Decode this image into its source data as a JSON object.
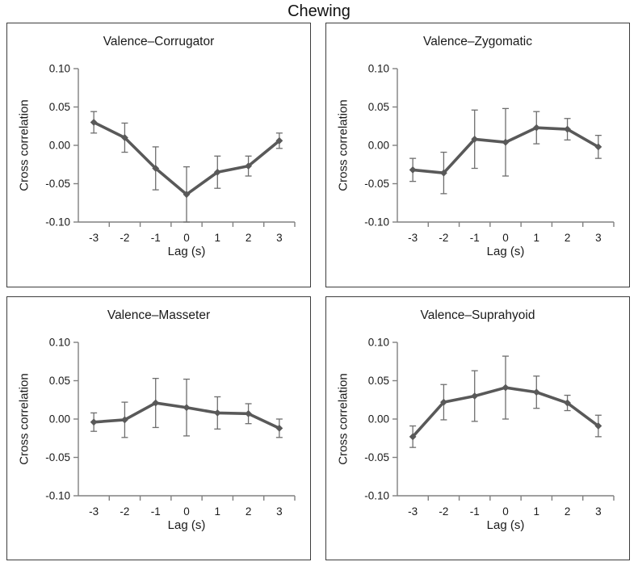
{
  "figure": {
    "title": "Chewing"
  },
  "style": {
    "line_color": "#595959",
    "error_color": "#6e6e6e",
    "axis_color": "#808080",
    "text_color": "#1a1a1a",
    "panel_border_color": "#3d3d3d",
    "background": "#ffffff"
  },
  "chart_data": [
    {
      "type": "line",
      "title": "Valence–Corrugator",
      "xlabel": "Lag (s)",
      "ylabel": "Cross correlation",
      "x": [
        -3,
        -2,
        -1,
        0,
        1,
        2,
        3
      ],
      "values": [
        0.03,
        0.01,
        -0.03,
        -0.064,
        -0.035,
        -0.027,
        0.006
      ],
      "errors": [
        0.014,
        0.019,
        0.028,
        0.036,
        0.021,
        0.013,
        0.01
      ],
      "ylim": [
        -0.1,
        0.1
      ],
      "ytick_labels": [
        "0.10",
        "0.05",
        "0.00",
        "-0.05",
        "-0.10"
      ],
      "marker": "diamond",
      "line_color": "#595959",
      "grid": false,
      "legend": null
    },
    {
      "type": "line",
      "title": "Valence–Zygomatic",
      "xlabel": "Lag (s)",
      "ylabel": "Cross correlation",
      "x": [
        -3,
        -2,
        -1,
        0,
        1,
        2,
        3
      ],
      "values": [
        -0.032,
        -0.036,
        0.008,
        0.004,
        0.023,
        0.021,
        -0.002
      ],
      "errors": [
        0.015,
        0.027,
        0.038,
        0.044,
        0.021,
        0.014,
        0.015
      ],
      "ylim": [
        -0.1,
        0.1
      ],
      "ytick_labels": [
        "0.10",
        "0.05",
        "0.00",
        "-0.05",
        "-0.10"
      ],
      "marker": "diamond",
      "line_color": "#595959",
      "grid": false,
      "legend": null
    },
    {
      "type": "line",
      "title": "Valence–Masseter",
      "xlabel": "Lag (s)",
      "ylabel": "Cross correlation",
      "x": [
        -3,
        -2,
        -1,
        0,
        1,
        2,
        3
      ],
      "values": [
        -0.004,
        -0.001,
        0.021,
        0.015,
        0.008,
        0.007,
        -0.012
      ],
      "errors": [
        0.012,
        0.023,
        0.032,
        0.037,
        0.021,
        0.013,
        0.012
      ],
      "ylim": [
        -0.1,
        0.1
      ],
      "ytick_labels": [
        "0.10",
        "0.05",
        "0.00",
        "-0.05",
        "-0.10"
      ],
      "marker": "diamond",
      "line_color": "#595959",
      "grid": false,
      "legend": null
    },
    {
      "type": "line",
      "title": "Valence–Suprahyoid",
      "xlabel": "Lag (s)",
      "ylabel": "Cross correlation",
      "x": [
        -3,
        -2,
        -1,
        0,
        1,
        2,
        3
      ],
      "values": [
        -0.023,
        0.022,
        0.03,
        0.041,
        0.035,
        0.021,
        -0.009
      ],
      "errors": [
        0.014,
        0.023,
        0.033,
        0.041,
        0.021,
        0.01,
        0.014
      ],
      "ylim": [
        -0.1,
        0.1
      ],
      "ytick_labels": [
        "0.10",
        "0.05",
        "0.00",
        "-0.05",
        "-0.10"
      ],
      "marker": "diamond",
      "line_color": "#595959",
      "grid": false,
      "legend": null
    }
  ]
}
